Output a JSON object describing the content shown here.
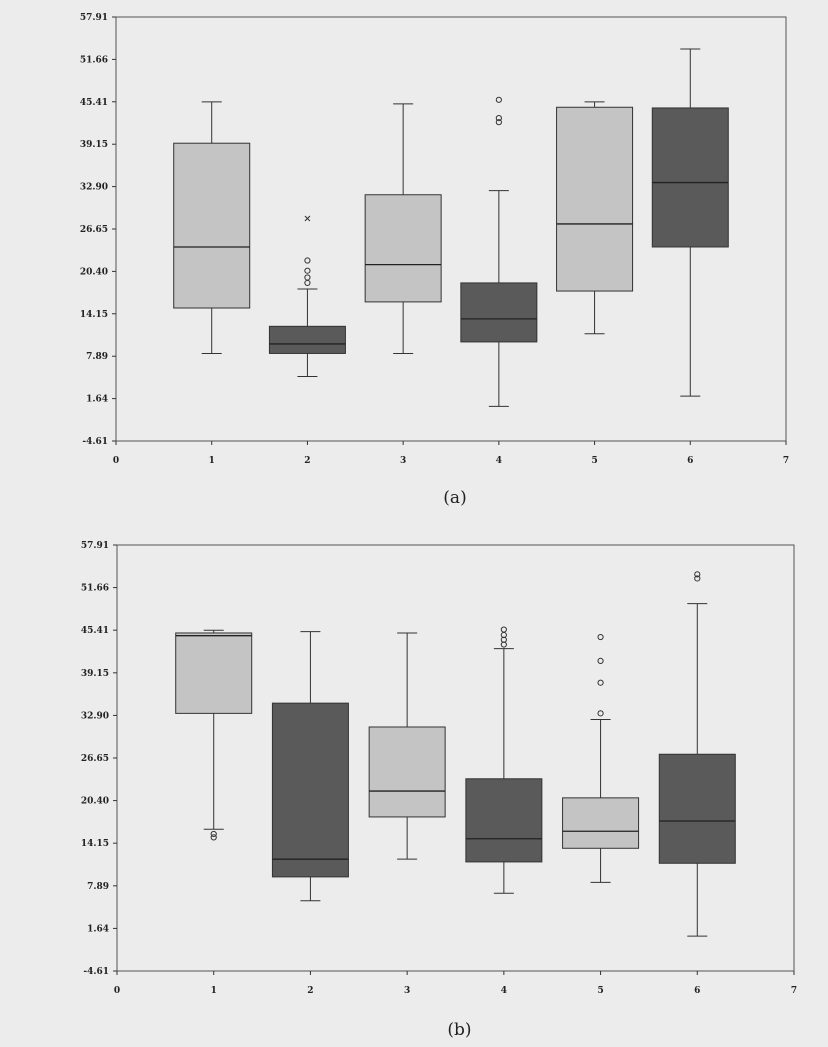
{
  "chart_data": [
    {
      "type": "box",
      "caption": "(a)",
      "xlim": [
        0,
        7
      ],
      "ylim": [
        -4.61,
        57.91
      ],
      "xticks": [
        "0",
        "1",
        "2",
        "3",
        "4",
        "5",
        "6",
        "7"
      ],
      "yticks": [
        "57.91",
        "51.66",
        "45.41",
        "39.15",
        "32.90",
        "26.65",
        "20.40",
        "14.15",
        "7.89",
        "1.64",
        "-4.61"
      ],
      "boxes": [
        {
          "x": 1,
          "min": 8.3,
          "q1": 15.0,
          "median": 24.0,
          "q3": 39.3,
          "max": 45.4,
          "fill": "#c4c4c4",
          "outliers": []
        },
        {
          "x": 2,
          "min": 4.9,
          "q1": 8.3,
          "median": 9.7,
          "q3": 12.3,
          "max": 17.8,
          "fill": "#5a5a5a",
          "outliers": [
            {
              "y": 18.7,
              "marker": "circle"
            },
            {
              "y": 19.5,
              "marker": "circle"
            },
            {
              "y": 20.5,
              "marker": "circle"
            },
            {
              "y": 22.0,
              "marker": "circle"
            },
            {
              "y": 28.2,
              "marker": "cross"
            }
          ]
        },
        {
          "x": 3,
          "min": 8.3,
          "q1": 15.9,
          "median": 21.4,
          "q3": 31.7,
          "max": 45.1,
          "fill": "#c4c4c4",
          "outliers": []
        },
        {
          "x": 4,
          "min": 0.5,
          "q1": 10.0,
          "median": 13.4,
          "q3": 18.7,
          "max": 32.3,
          "fill": "#5a5a5a",
          "outliers": [
            {
              "y": 42.4,
              "marker": "circle"
            },
            {
              "y": 43.0,
              "marker": "circle"
            },
            {
              "y": 45.7,
              "marker": "circle"
            }
          ]
        },
        {
          "x": 5,
          "min": 11.2,
          "q1": 17.5,
          "median": 27.4,
          "q3": 44.6,
          "max": 45.4,
          "fill": "#c4c4c4",
          "outliers": []
        },
        {
          "x": 6,
          "min": 2.0,
          "q1": 24.0,
          "median": 33.5,
          "q3": 44.5,
          "max": 53.2,
          "fill": "#5a5a5a",
          "outliers": []
        }
      ]
    },
    {
      "type": "box",
      "caption": "(b)",
      "xlim": [
        0,
        7
      ],
      "ylim": [
        -4.61,
        57.91
      ],
      "xticks": [
        "0",
        "1",
        "2",
        "3",
        "4",
        "5",
        "6",
        "7"
      ],
      "yticks": [
        "57.91",
        "51.66",
        "45.41",
        "39.15",
        "32.90",
        "26.65",
        "20.40",
        "14.15",
        "7.89",
        "1.64",
        "-4.61"
      ],
      "boxes": [
        {
          "x": 1,
          "min": 16.2,
          "q1": 33.2,
          "median": 44.6,
          "q3": 45.0,
          "max": 45.4,
          "fill": "#c4c4c4",
          "outliers": [
            {
              "y": 15.0,
              "marker": "circle"
            },
            {
              "y": 15.5,
              "marker": "circle"
            }
          ]
        },
        {
          "x": 2,
          "min": 5.7,
          "q1": 9.2,
          "median": 11.8,
          "q3": 34.7,
          "max": 45.2,
          "fill": "#5a5a5a",
          "outliers": []
        },
        {
          "x": 3,
          "min": 11.8,
          "q1": 18.0,
          "median": 21.8,
          "q3": 31.2,
          "max": 45.0,
          "fill": "#c4c4c4",
          "outliers": []
        },
        {
          "x": 4,
          "min": 6.8,
          "q1": 11.4,
          "median": 14.8,
          "q3": 23.6,
          "max": 42.7,
          "fill": "#5a5a5a",
          "outliers": [
            {
              "y": 43.3,
              "marker": "circle"
            },
            {
              "y": 44.0,
              "marker": "circle"
            },
            {
              "y": 44.7,
              "marker": "circle"
            },
            {
              "y": 45.5,
              "marker": "circle"
            }
          ]
        },
        {
          "x": 5,
          "min": 8.4,
          "q1": 13.4,
          "median": 15.9,
          "q3": 20.8,
          "max": 32.3,
          "fill": "#c4c4c4",
          "outliers": [
            {
              "y": 33.2,
              "marker": "circle"
            },
            {
              "y": 37.7,
              "marker": "circle"
            },
            {
              "y": 40.9,
              "marker": "circle"
            },
            {
              "y": 44.4,
              "marker": "circle"
            }
          ]
        },
        {
          "x": 6,
          "min": 0.5,
          "q1": 11.2,
          "median": 17.4,
          "q3": 27.2,
          "max": 49.3,
          "fill": "#5a5a5a",
          "outliers": [
            {
              "y": 53.0,
              "marker": "circle"
            },
            {
              "y": 53.6,
              "marker": "circle"
            }
          ]
        }
      ]
    }
  ]
}
